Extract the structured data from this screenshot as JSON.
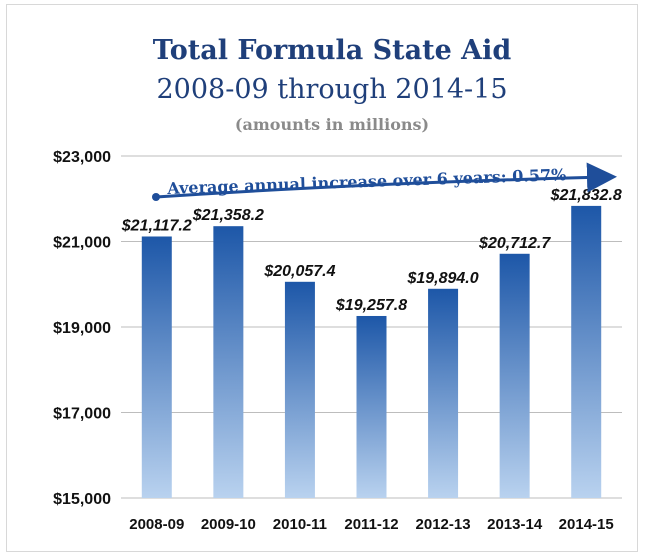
{
  "chart_data": {
    "type": "bar",
    "title": "Total Formula State Aid",
    "subtitle": "2008-09 through 2014-15",
    "units_note": "(amounts in millions)",
    "categories": [
      "2008-09",
      "2009-10",
      "2010-11",
      "2011-12",
      "2012-13",
      "2013-14",
      "2014-15"
    ],
    "values": [
      21117.2,
      21358.2,
      20057.4,
      19257.8,
      19894.0,
      20712.7,
      21832.8
    ],
    "value_labels": [
      "$21,117.2",
      "$21,358.2",
      "$20,057.4",
      "$19,257.8",
      "$19,894.0",
      "$20,712.7",
      "$21,832.8"
    ],
    "ylim": [
      15000,
      23000
    ],
    "yticks": [
      15000,
      17000,
      19000,
      21000,
      23000
    ],
    "ytick_labels": [
      "$15,000",
      "$17,000",
      "$19,000",
      "$21,000",
      "$23,000"
    ],
    "grid": true,
    "annotation": "Average annual increase over 6 years: 0.57%",
    "colors": {
      "bar_top": "#1d57a8",
      "bar_bottom": "#b9d2ef",
      "title": "#1f3f7a",
      "annotation": "#1f4e9a",
      "grid": "#bdbdbd"
    }
  }
}
